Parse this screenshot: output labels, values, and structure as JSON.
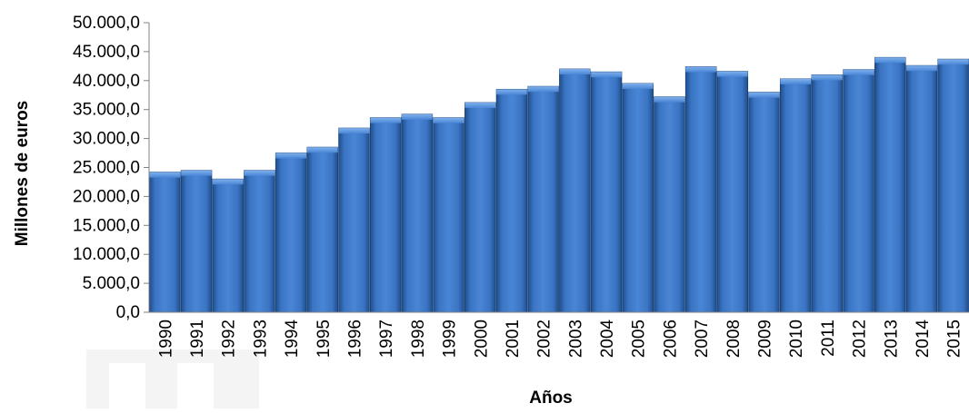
{
  "chart_data": {
    "type": "bar",
    "title": "",
    "xlabel": "Años",
    "ylabel": "Millones de euros",
    "ylim": [
      0,
      50000
    ],
    "yticks": [
      "0,0",
      "5.000,0",
      "10.000,0",
      "15.000,0",
      "20.000,0",
      "25.000,0",
      "30.000,0",
      "35.000,0",
      "40.000,0",
      "45.000,0",
      "50.000,0"
    ],
    "ytick_values": [
      0,
      5000,
      10000,
      15000,
      20000,
      25000,
      30000,
      35000,
      40000,
      45000,
      50000
    ],
    "categories": [
      "1990",
      "1991",
      "1992",
      "1993",
      "1994",
      "1995",
      "1996",
      "1997",
      "1998",
      "1999",
      "2000",
      "2001",
      "2002",
      "2003",
      "2004",
      "2005",
      "2006",
      "2007",
      "2008",
      "2009",
      "2010",
      "2011",
      "2012",
      "2013",
      "2014",
      "2015"
    ],
    "values": [
      24200,
      24500,
      23000,
      24500,
      27500,
      28500,
      31800,
      33600,
      34200,
      33600,
      36200,
      38500,
      39000,
      42000,
      41500,
      39500,
      37200,
      42400,
      41600,
      38000,
      40300,
      41000,
      41900,
      44000,
      42600,
      43700
    ],
    "bar_color": "#3d78c7",
    "grid": false,
    "legend": "none"
  }
}
